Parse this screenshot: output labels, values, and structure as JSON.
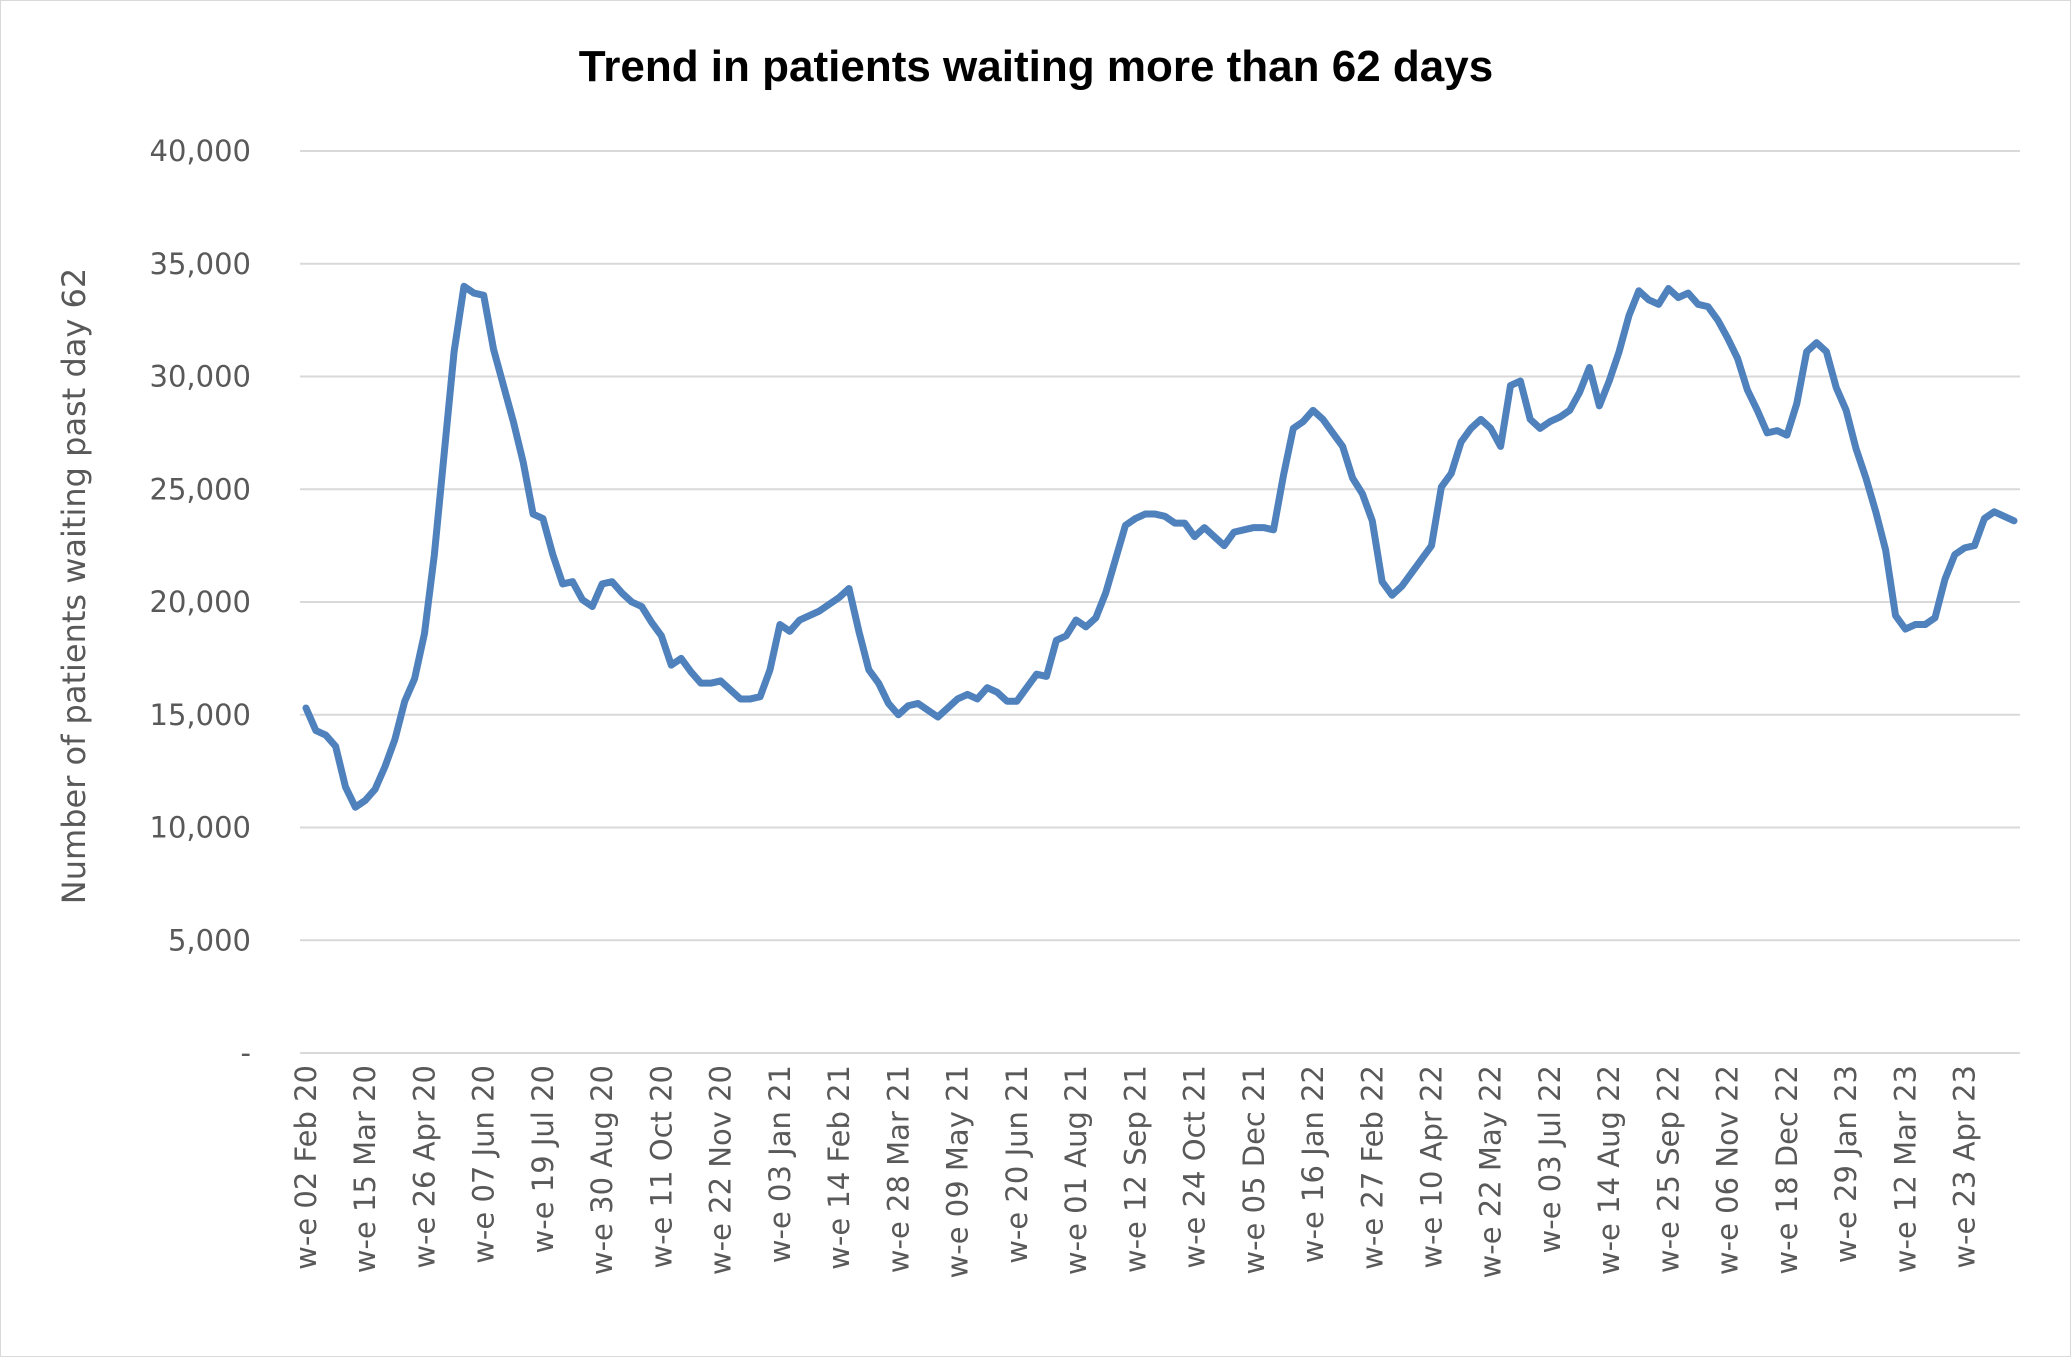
{
  "chart_data": {
    "type": "line",
    "title": "Trend in patients waiting more than 62 days",
    "xlabel": "",
    "ylabel": "Number of patients waiting past day 62",
    "ylim": [
      0,
      40000
    ],
    "y_ticks": [
      0,
      5000,
      10000,
      15000,
      20000,
      25000,
      30000,
      35000,
      40000
    ],
    "y_tick_labels": [
      "-",
      "5,000",
      "10,000",
      "15,000",
      "20,000",
      "25,000",
      "30,000",
      "35,000",
      "40,000"
    ],
    "x_tick_labels": [
      "w-e 02 Feb 20",
      "w-e 15 Mar 20",
      "w-e 26 Apr 20",
      "w-e 07 Jun 20",
      "w-e 19 Jul 20",
      "w-e 30 Aug 20",
      "w-e 11 Oct 20",
      "w-e 22 Nov 20",
      "w-e 03 Jan 21",
      "w-e 14 Feb 21",
      "w-e 28 Mar 21",
      "w-e 09 May 21",
      "w-e 20 Jun 21",
      "w-e 01 Aug 21",
      "w-e 12 Sep 21",
      "w-e 24 Oct 21",
      "w-e 05 Dec 21",
      "w-e 16 Jan 22",
      "w-e 27 Feb 22",
      "w-e 10 Apr 22",
      "w-e 22 May 22",
      "w-e 03 Jul 22",
      "w-e 14 Aug 22",
      "w-e 25 Sep 22",
      "w-e 06 Nov 22",
      "w-e 18 Dec 22",
      "w-e 29 Jan 23",
      "w-e 12 Mar 23",
      "w-e 23 Apr 23"
    ],
    "x_tick_every": 6,
    "grid": true,
    "legend": "none",
    "series": [
      {
        "color": "#4f81bd",
        "values": [
          15300,
          14300,
          14100,
          13600,
          11800,
          10900,
          11200,
          11700,
          12700,
          13900,
          15600,
          16600,
          18600,
          22100,
          26600,
          31100,
          34000,
          33700,
          33600,
          31200,
          29600,
          28000,
          26200,
          23900,
          23700,
          22100,
          20800,
          20900,
          20100,
          19800,
          20800,
          20900,
          20400,
          20000,
          19800,
          19100,
          18500,
          17200,
          17500,
          16900,
          16400,
          16400,
          16500,
          16100,
          15700,
          15700,
          15800,
          17000,
          19000,
          18700,
          19200,
          19400,
          19600,
          19900,
          20200,
          20600,
          18700,
          17000,
          16400,
          15500,
          15000,
          15400,
          15500,
          15200,
          14900,
          15300,
          15700,
          15900,
          15700,
          16200,
          16000,
          15600,
          15600,
          16200,
          16800,
          16700,
          18300,
          18500,
          19200,
          18900,
          19300,
          20400,
          21900,
          23400,
          23700,
          23900,
          23900,
          23800,
          23500,
          23500,
          22900,
          23300,
          22900,
          22500,
          23100,
          23200,
          23300,
          23300,
          23200,
          25600,
          27700,
          28000,
          28500,
          28100,
          27500,
          26900,
          25500,
          24800,
          23600,
          20900,
          20300,
          20700,
          21300,
          21900,
          22500,
          25100,
          25700,
          27100,
          27700,
          28100,
          27700,
          26900,
          29600,
          29800,
          28100,
          27700,
          28000,
          28200,
          28500,
          29300,
          30400,
          28700,
          29800,
          31100,
          32700,
          33800,
          33400,
          33200,
          33900,
          33500,
          33700,
          33200,
          33100,
          32500,
          31700,
          30800,
          29400,
          28500,
          27500,
          27600,
          27400,
          28800,
          31100,
          31500,
          31100,
          29500,
          28500,
          26800,
          25500,
          24000,
          22300,
          19400,
          18800,
          19000,
          19000,
          19300,
          21000,
          22100,
          22400,
          22500,
          23700,
          24000,
          23800,
          23600
        ]
      }
    ]
  }
}
